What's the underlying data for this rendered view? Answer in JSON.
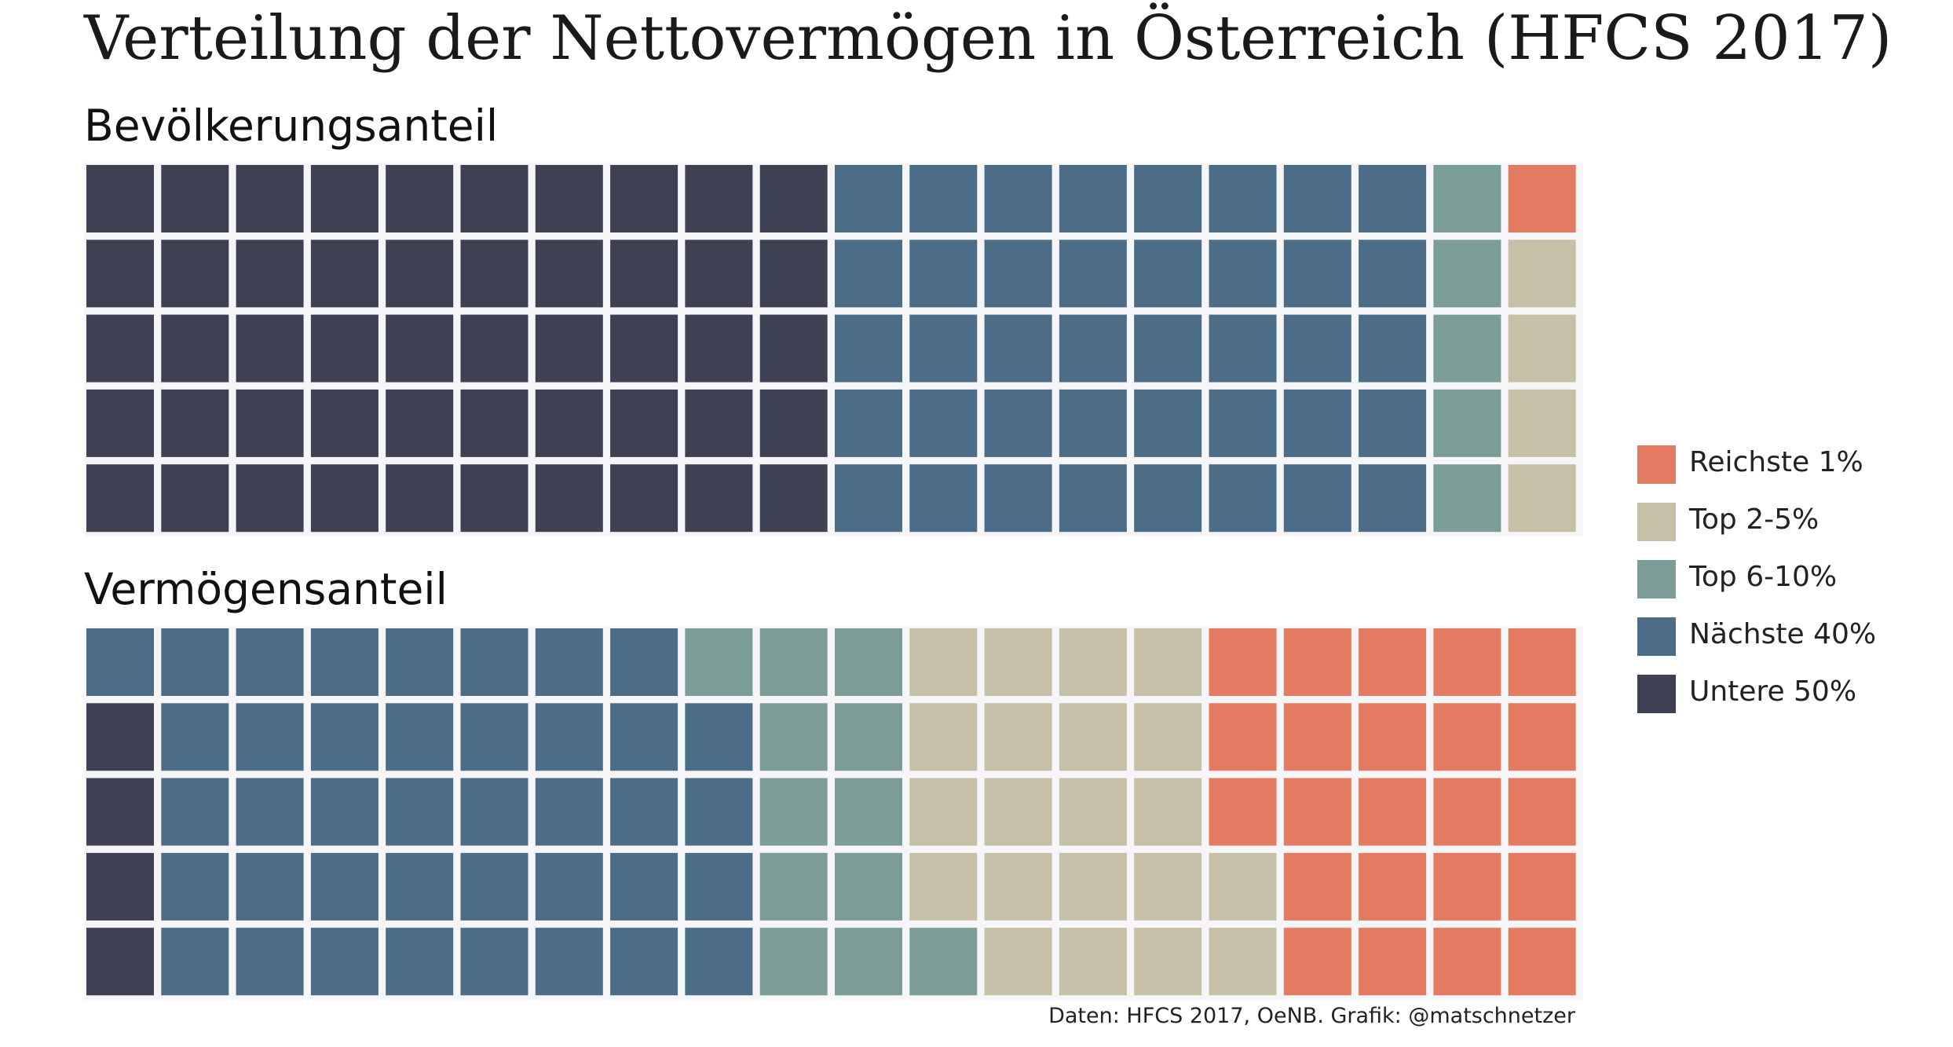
{
  "title": "Verteilung der Nettovermögen in Österreich (HFCS 2017)",
  "caption": "Daten: HFCS 2017, OeNB. Grafik: @matschnetzer",
  "legend": [
    {
      "label": "Reichste 1%",
      "key": "top1",
      "color": "#E27B62"
    },
    {
      "label": "Top 2-5%",
      "key": "top2_5",
      "color": "#C6C1A6"
    },
    {
      "label": "Top 6-10%",
      "key": "top6_10",
      "color": "#7A9E97"
    },
    {
      "label": "Nächste 40%",
      "key": "next40",
      "color": "#4B6D87"
    },
    {
      "label": "Untere 50%",
      "key": "bottom50",
      "color": "#3E4053"
    }
  ],
  "chart_data": [
    {
      "type": "waffle",
      "title": "Bevölkerungsanteil",
      "rows": 5,
      "columns": 20,
      "units": "Prozent",
      "series": [
        {
          "name": "Untere 50%",
          "key": "bottom50",
          "value": 50
        },
        {
          "name": "Nächste 40%",
          "key": "next40",
          "value": 40
        },
        {
          "name": "Top 6-10%",
          "key": "top6_10",
          "value": 5
        },
        {
          "name": "Top 2-5%",
          "key": "top2_5",
          "value": 4
        },
        {
          "name": "Reichste 1%",
          "key": "top1",
          "value": 1
        }
      ]
    },
    {
      "type": "waffle",
      "title": "Vermögensanteil",
      "rows": 5,
      "columns": 20,
      "units": "Prozent",
      "series": [
        {
          "name": "Untere 50%",
          "key": "bottom50",
          "value": 4
        },
        {
          "name": "Nächste 40%",
          "key": "next40",
          "value": 40
        },
        {
          "name": "Top 6-10%",
          "key": "top6_10",
          "value": 12
        },
        {
          "name": "Top 2-5%",
          "key": "top2_5",
          "value": 21
        },
        {
          "name": "Reichste 1%",
          "key": "top1",
          "value": 23
        }
      ]
    }
  ]
}
